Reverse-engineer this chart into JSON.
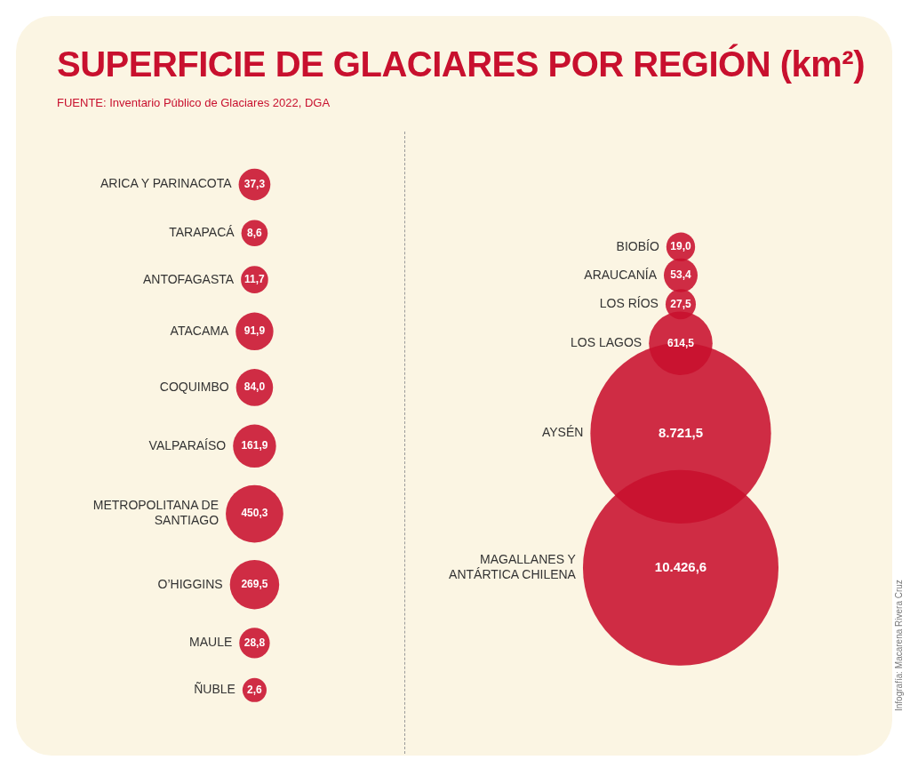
{
  "chart_data": [
    {
      "type": "other",
      "title": "SUPERFICIE DE GLACIARES POR REGIÓN (km²)",
      "subtitle": "FUENTE: Inventario Público de Glaciares 2022, DGA",
      "color": "#c8102e",
      "categories": [
        "ARICA Y PARINACOTA",
        "TARAPACÁ",
        "ANTOFAGASTA",
        "ATACAMA",
        "COQUIMBO",
        "VALPARAÍSO",
        "METROPOLITANA DE SANTIAGO",
        "O’HIGGINS",
        "MAULE",
        "ÑUBLE"
      ],
      "values": [
        37.3,
        8.6,
        11.7,
        91.9,
        84.0,
        161.9,
        450.3,
        269.5,
        28.8,
        2.6
      ],
      "value_labels": [
        "37,3",
        "8,6",
        "11,7",
        "91,9",
        "84,0",
        "161,9",
        "450,3",
        "269,5",
        "28,8",
        "2,6"
      ]
    },
    {
      "type": "other",
      "color": "#c8102e",
      "categories": [
        "BIOBÍO",
        "ARAUCANÍA",
        "LOS RÍOS",
        "LOS LAGOS",
        "AYSÉN",
        "MAGALLANES Y ANTÁRTICA CHILENA"
      ],
      "values": [
        19.0,
        53.4,
        27.5,
        614.5,
        8721.5,
        10426.6
      ],
      "value_labels": [
        "19,0",
        "53,4",
        "27,5",
        "614,5",
        "8.721,5",
        "10.426,6"
      ],
      "annotations": [
        "Infografía: Macarena Rivera Cruz"
      ]
    }
  ]
}
